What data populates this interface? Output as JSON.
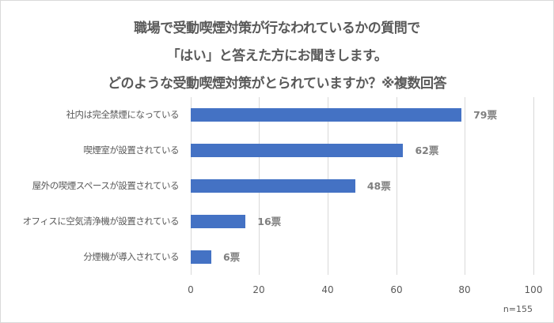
{
  "title": {
    "line1": "職場で受動喫煙対策が行なわれているかの質問で",
    "line2": "「はい」と答えた方にお聞きします。",
    "line3": "どのような受動喫煙対策がとられていますか？※複数回答"
  },
  "note": "n=155",
  "colors": {
    "bar": "#4472c4",
    "text": "#595959",
    "value_label": "#7f7f7f",
    "grid": "#d9d9d9"
  },
  "axis": {
    "ticks": [
      "0",
      "20",
      "40",
      "60",
      "80",
      "100"
    ]
  },
  "bars": [
    {
      "label": "社内は完全禁煙になっている",
      "value": 79,
      "value_label": "79票"
    },
    {
      "label": "喫煙室が設置されている",
      "value": 62,
      "value_label": "62票"
    },
    {
      "label": "屋外の喫煙スペースが設置されている",
      "value": 48,
      "value_label": "48票"
    },
    {
      "label": "オフィスに空気清浄機が設置されている",
      "value": 16,
      "value_label": "16票"
    },
    {
      "label": "分煙機が導入されている",
      "value": 6,
      "value_label": "6票"
    }
  ],
  "chart_data": {
    "type": "bar",
    "orientation": "horizontal",
    "title": "職場で受動喫煙対策が行なわれているかの質問で「はい」と答えた方にお聞きします。どのような受動喫煙対策がとられていますか？※複数回答",
    "categories": [
      "社内は完全禁煙になっている",
      "喫煙室が設置されている",
      "屋外の喫煙スペースが設置されている",
      "オフィスに空気清浄機が設置されている",
      "分煙機が導入されている"
    ],
    "values": [
      79,
      62,
      48,
      16,
      6
    ],
    "data_labels": [
      "79票",
      "62票",
      "48票",
      "16票",
      "6票"
    ],
    "xlabel": "",
    "ylabel": "",
    "xlim": [
      0,
      100
    ],
    "xticks": [
      0,
      20,
      40,
      60,
      80,
      100
    ],
    "grid": "vertical",
    "legend": "none",
    "annotation": "n=155"
  }
}
